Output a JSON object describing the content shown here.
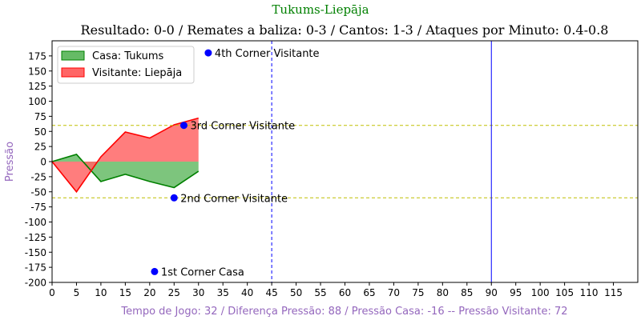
{
  "chart_data": {
    "type": "area",
    "suptitle": "Tukums-Liepāja",
    "title": "Resultado: 0-0 / Remates a baliza: 0-3 / Cantos: 1-3 / Ataques por Minuto: 0.4-0.8",
    "xlabel": "Tempo de Jogo: 32 / Diferença Pressão: 88 / Pressão Casa: -16 -- Pressão Visitante: 72",
    "ylabel": "Pressão",
    "xlim": [
      0,
      120
    ],
    "ylim": [
      -200,
      200
    ],
    "xticks": [
      0,
      5,
      10,
      15,
      20,
      25,
      30,
      35,
      40,
      45,
      50,
      55,
      60,
      65,
      70,
      75,
      80,
      85,
      90,
      95,
      100,
      105,
      110,
      115
    ],
    "yticks": [
      -200,
      -175,
      -150,
      -125,
      -100,
      -75,
      -50,
      -25,
      0,
      25,
      50,
      75,
      100,
      125,
      150,
      175
    ],
    "x": [
      0,
      5,
      10,
      15,
      20,
      25,
      30
    ],
    "series": [
      {
        "name": "Casa: Tukums",
        "values": [
          0,
          12,
          -33,
          -21,
          -33,
          -43,
          -16
        ],
        "line_color": "#008000",
        "fill_color": "#66bb66"
      },
      {
        "name": "Visitante: Liepāja",
        "values": [
          0,
          -50,
          8,
          49,
          39,
          61,
          72
        ],
        "line_color": "#ff0000",
        "fill_color": "#ff6666"
      }
    ],
    "hlines": [
      60,
      -60
    ],
    "hline_color": "#bfbf00",
    "vlines": [
      {
        "x": 45,
        "style": "dashed"
      },
      {
        "x": 90,
        "style": "solid"
      }
    ],
    "vline_color": "#0000ff",
    "annotations": [
      {
        "x": 32,
        "y": 180,
        "text": "4th Corner Visitante"
      },
      {
        "x": 27,
        "y": 60,
        "text": "3rd Corner Visitante"
      },
      {
        "x": 25,
        "y": -60,
        "text": "2nd Corner Visitante"
      },
      {
        "x": 21,
        "y": -182,
        "text": "1st Corner Casa"
      }
    ],
    "marker_color": "#0000ff",
    "legend_position": "top-left",
    "suptitle_color": "#008000",
    "label_color": "#9467bd"
  }
}
